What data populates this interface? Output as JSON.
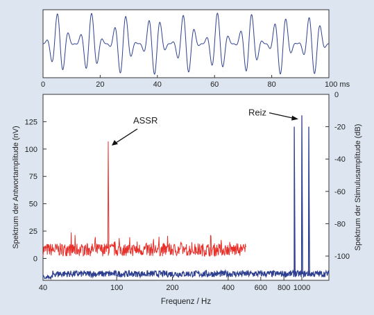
{
  "chart_data": [
    {
      "type": "line",
      "panel": "waveform",
      "description_units": "time",
      "x_ticks": [
        0,
        20,
        40,
        60,
        80,
        100
      ],
      "x_unit_label": "ms",
      "xlim": [
        0,
        100
      ],
      "series": [
        {
          "carrier_hz": 1000,
          "modulation_hz": 90,
          "amplitude": 1.0,
          "color": "#2e3f8f"
        }
      ]
    },
    {
      "type": "line",
      "panel": "spectrum",
      "xlabel": "Frequenz / Hz",
      "ylabel_left": "Spektrum der Antwortamplitude (nV)",
      "ylabel_right": "Spektrum der Stimulusamplitude (dB)",
      "x_scale": "log",
      "xlim": [
        40,
        1400
      ],
      "x_ticks": [
        40,
        100,
        200,
        400,
        600,
        800,
        1000
      ],
      "ylim_left": [
        -20,
        150
      ],
      "y_ticks_left": [
        0,
        25,
        50,
        75,
        100,
        125
      ],
      "ylim_right": [
        -115,
        0
      ],
      "y_ticks_right": [
        0,
        -20,
        -40,
        -60,
        -80,
        -100
      ],
      "series": [
        {
          "axis": "left",
          "color": "#e8302a",
          "x_range": [
            40,
            500
          ],
          "noise_mean": 8,
          "noise_amplitude": 6,
          "peaks": [
            {
              "x": 90,
              "y": 107
            }
          ]
        },
        {
          "axis": "right",
          "color": "#2e3f8f",
          "x_range": [
            40,
            1400
          ],
          "noise_mean": -111,
          "noise_amplitude": 2,
          "peaks": [
            {
              "x": 910,
              "y": -20
            },
            {
              "x": 1000,
              "y": -13
            },
            {
              "x": 1090,
              "y": -20
            }
          ]
        }
      ],
      "annotations": [
        {
          "text": "ASSR",
          "target_x": 90,
          "target_axis": "left",
          "target_y": 107
        },
        {
          "text": "Reiz",
          "target_x": 1000,
          "target_axis": "right",
          "target_y": -14
        }
      ]
    }
  ]
}
